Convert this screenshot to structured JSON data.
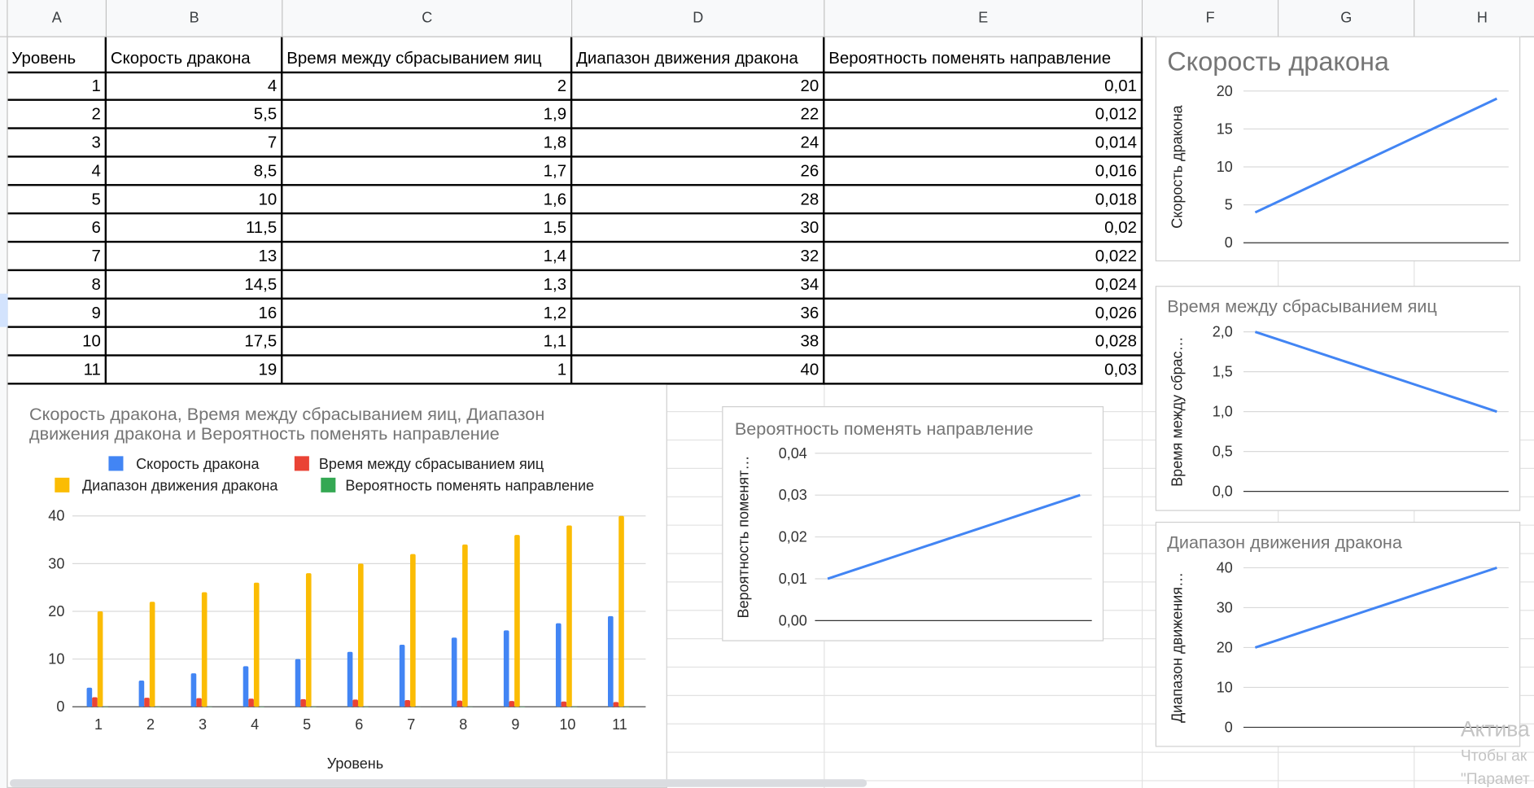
{
  "columns": [
    "A",
    "B",
    "C",
    "D",
    "E",
    "F",
    "G",
    "H"
  ],
  "table": {
    "headers": [
      "Уровень",
      "Скорость дракона",
      "Время между сбрасыванием яиц",
      "Диапазон движения дракона",
      "Вероятность поменять направление"
    ],
    "rows": [
      [
        "1",
        "4",
        "2",
        "20",
        "0,01"
      ],
      [
        "2",
        "5,5",
        "1,9",
        "22",
        "0,012"
      ],
      [
        "3",
        "7",
        "1,8",
        "24",
        "0,014"
      ],
      [
        "4",
        "8,5",
        "1,7",
        "26",
        "0,016"
      ],
      [
        "5",
        "10",
        "1,6",
        "28",
        "0,018"
      ],
      [
        "6",
        "11,5",
        "1,5",
        "30",
        "0,02"
      ],
      [
        "7",
        "13",
        "1,4",
        "32",
        "0,022"
      ],
      [
        "8",
        "14,5",
        "1,3",
        "34",
        "0,024"
      ],
      [
        "9",
        "16",
        "1,2",
        "36",
        "0,026"
      ],
      [
        "10",
        "17,5",
        "1,1",
        "38",
        "0,028"
      ],
      [
        "11",
        "19",
        "1",
        "40",
        "0,03"
      ]
    ]
  },
  "colors": {
    "blue": "#4285f4",
    "red": "#ea4335",
    "yellow": "#fbbc04",
    "green": "#34a853"
  },
  "chart_data": [
    {
      "type": "bar",
      "title_lines": [
        "Скорость дракона, Время между сбрасыванием яиц, Диапазон",
        "движения дракона и Вероятность поменять направление"
      ],
      "xlabel": "Уровень",
      "ylabel": "",
      "categories": [
        "1",
        "2",
        "3",
        "4",
        "5",
        "6",
        "7",
        "8",
        "9",
        "10",
        "11"
      ],
      "series": [
        {
          "name": "Скорость дракона",
          "values": [
            4,
            5.5,
            7,
            8.5,
            10,
            11.5,
            13,
            14.5,
            16,
            17.5,
            19
          ]
        },
        {
          "name": "Время между сбрасыванием яиц",
          "values": [
            2,
            1.9,
            1.8,
            1.7,
            1.6,
            1.5,
            1.4,
            1.3,
            1.2,
            1.1,
            1
          ]
        },
        {
          "name": "Диапазон движения дракона",
          "values": [
            20,
            22,
            24,
            26,
            28,
            30,
            32,
            34,
            36,
            38,
            40
          ]
        },
        {
          "name": "Вероятность поменять направление",
          "values": [
            0.01,
            0.012,
            0.014,
            0.016,
            0.018,
            0.02,
            0.022,
            0.024,
            0.026,
            0.028,
            0.03
          ]
        }
      ],
      "ylim": [
        0,
        40
      ],
      "yticks": [
        "0",
        "10",
        "20",
        "30",
        "40"
      ],
      "grid": true,
      "legend": "top"
    },
    {
      "type": "line",
      "title": "Скорость дракона",
      "xlabel": "",
      "ylabel": "Скорость дракона",
      "x": [
        1,
        2,
        3,
        4,
        5,
        6,
        7,
        8,
        9,
        10,
        11
      ],
      "values": [
        4,
        5.5,
        7,
        8.5,
        10,
        11.5,
        13,
        14.5,
        16,
        17.5,
        19
      ],
      "ylim": [
        0,
        20
      ],
      "yticks": [
        "0",
        "5",
        "10",
        "15",
        "20"
      ],
      "grid": true
    },
    {
      "type": "line",
      "title": "Время между сбрасыванием яиц",
      "xlabel": "",
      "ylabel": "Время между сбрас…",
      "x": [
        1,
        2,
        3,
        4,
        5,
        6,
        7,
        8,
        9,
        10,
        11
      ],
      "values": [
        2,
        1.9,
        1.8,
        1.7,
        1.6,
        1.5,
        1.4,
        1.3,
        1.2,
        1.1,
        1
      ],
      "ylim": [
        0,
        2
      ],
      "yticks": [
        "0,0",
        "0,5",
        "1,0",
        "1,5",
        "2,0"
      ],
      "grid": true
    },
    {
      "type": "line",
      "title": "Вероятность поменять направление",
      "xlabel": "",
      "ylabel": "Вероятность поменят…",
      "x": [
        1,
        2,
        3,
        4,
        5,
        6,
        7,
        8,
        9,
        10,
        11
      ],
      "values": [
        0.01,
        0.012,
        0.014,
        0.016,
        0.018,
        0.02,
        0.022,
        0.024,
        0.026,
        0.028,
        0.03
      ],
      "ylim": [
        0,
        0.04
      ],
      "yticks": [
        "0,00",
        "0,01",
        "0,02",
        "0,03",
        "0,04"
      ],
      "grid": true
    },
    {
      "type": "line",
      "title": "Диапазон движения дракона",
      "xlabel": "",
      "ylabel": "Диапазон движения…",
      "x": [
        1,
        2,
        3,
        4,
        5,
        6,
        7,
        8,
        9,
        10,
        11
      ],
      "values": [
        20,
        22,
        24,
        26,
        28,
        30,
        32,
        34,
        36,
        38,
        40
      ],
      "ylim": [
        0,
        40
      ],
      "yticks": [
        "0",
        "10",
        "20",
        "30",
        "40"
      ],
      "grid": true
    }
  ],
  "watermark": {
    "title": "Актива",
    "line1": "Чтобы ак",
    "line2": "\"Парамет"
  }
}
